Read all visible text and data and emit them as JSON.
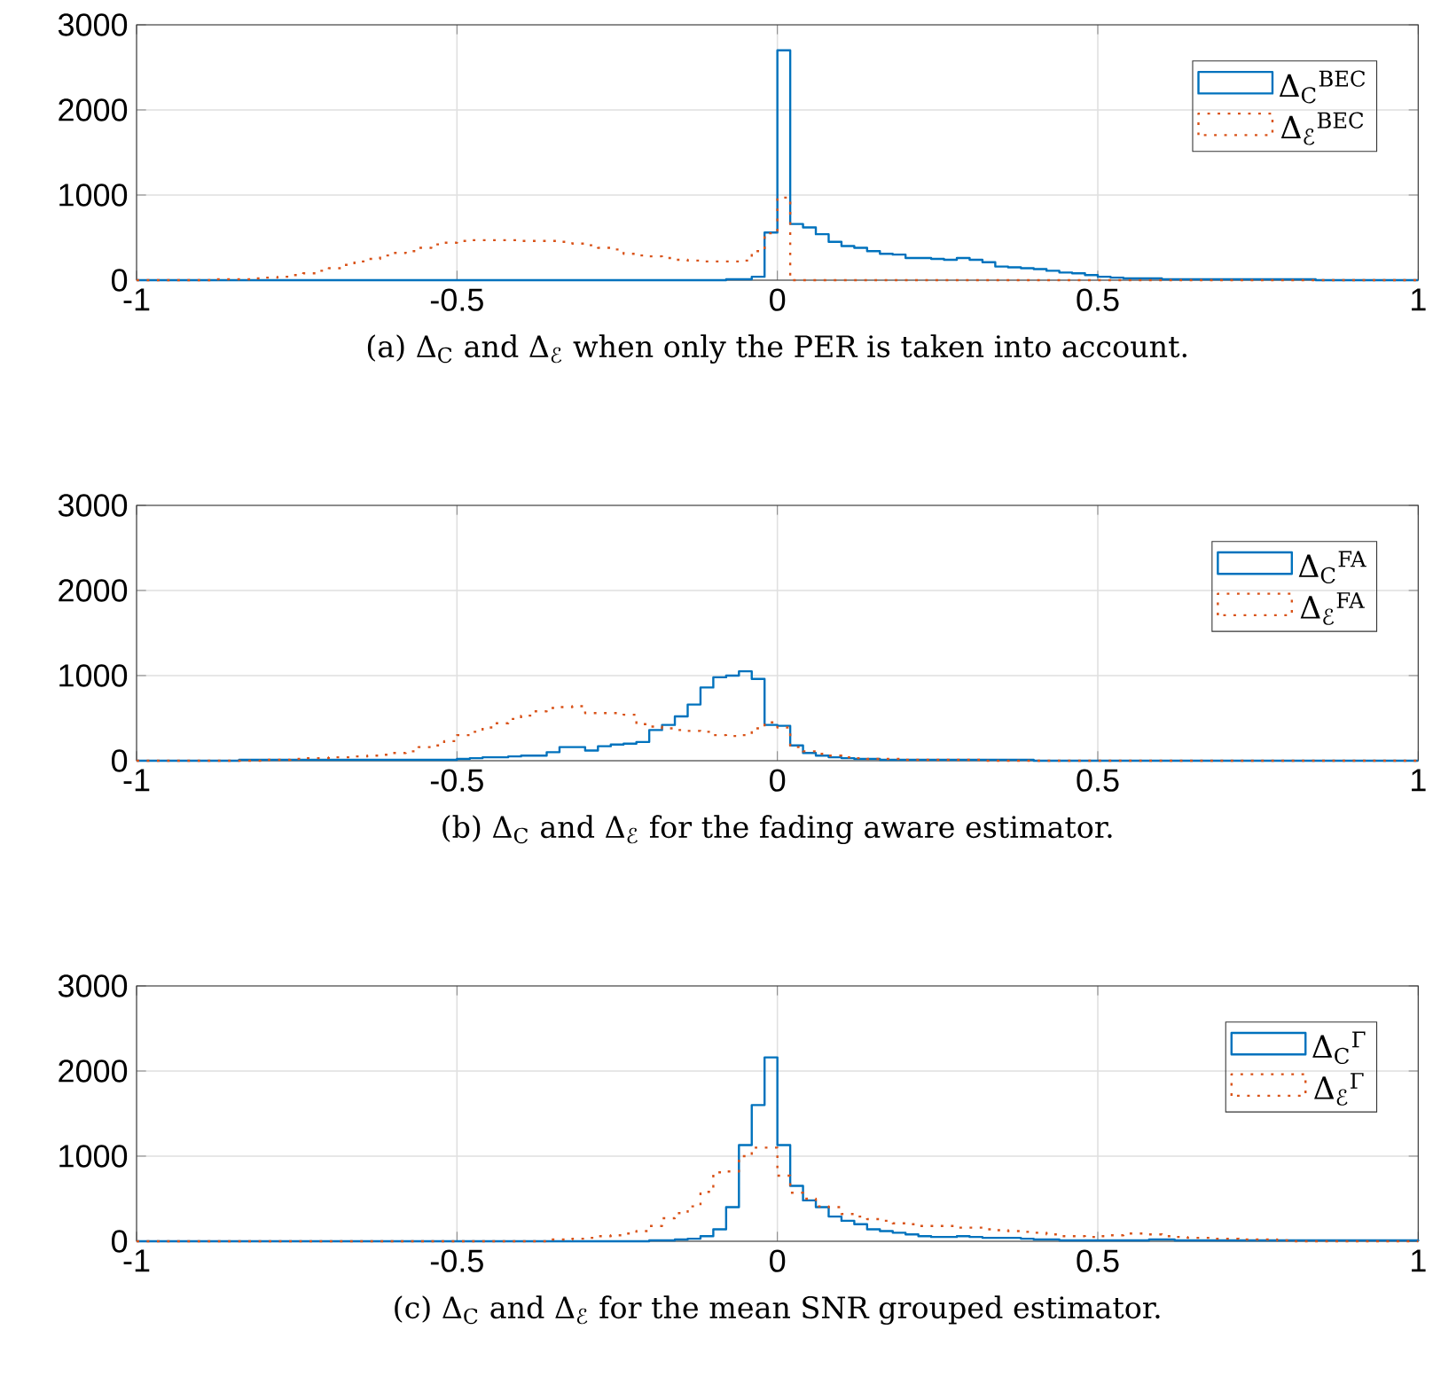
{
  "chart_data": [
    {
      "type": "histogram",
      "bins": [
        -1,
        -0.98,
        -0.96,
        -0.94,
        -0.92,
        -0.9,
        -0.88,
        -0.86,
        -0.84,
        -0.82,
        -0.8,
        -0.78,
        -0.76,
        -0.74,
        -0.72,
        -0.7,
        -0.68,
        -0.66,
        -0.64,
        -0.62,
        -0.6,
        -0.58,
        -0.56,
        -0.54,
        -0.52,
        -0.5,
        -0.48,
        -0.46,
        -0.44,
        -0.42,
        -0.4,
        -0.38,
        -0.36,
        -0.34,
        -0.32,
        -0.3,
        -0.28,
        -0.26,
        -0.24,
        -0.22,
        -0.2,
        -0.18,
        -0.16,
        -0.14,
        -0.12,
        -0.1,
        -0.08,
        -0.06,
        -0.04,
        -0.02,
        0,
        0.02,
        0.04,
        0.06,
        0.08,
        0.1,
        0.12,
        0.14,
        0.16,
        0.18,
        0.2,
        0.22,
        0.24,
        0.26,
        0.28,
        0.3,
        0.32,
        0.34,
        0.36,
        0.38,
        0.4,
        0.42,
        0.44,
        0.46,
        0.48,
        0.5,
        0.52,
        0.54,
        0.56,
        0.58,
        0.6,
        0.62,
        0.64,
        0.66,
        0.68,
        0.7,
        0.72,
        0.74,
        0.76,
        0.78,
        0.8,
        0.82,
        0.84,
        0.86,
        0.88,
        0.9,
        0.92,
        0.94,
        0.96,
        0.98,
        1
      ],
      "series": [
        {
          "name": "Δ$_{C}$$^{BEC}$",
          "color": "#0072bd",
          "line_style": "solid",
          "values": [
            0,
            0,
            0,
            0,
            0,
            0,
            0,
            0,
            0,
            0,
            0,
            0,
            0,
            0,
            0,
            0,
            0,
            0,
            0,
            0,
            0,
            0,
            0,
            0,
            0,
            0,
            0,
            0,
            0,
            0,
            0,
            0,
            0,
            0,
            0,
            0,
            0,
            0,
            0,
            0,
            0,
            0,
            0,
            0,
            0,
            0,
            10,
            10,
            40,
            560,
            2700,
            660,
            620,
            540,
            450,
            400,
            380,
            340,
            310,
            300,
            260,
            260,
            250,
            240,
            260,
            240,
            210,
            160,
            150,
            140,
            130,
            110,
            90,
            80,
            60,
            40,
            30,
            20,
            20,
            20,
            10,
            10,
            10,
            10,
            10,
            10,
            10,
            10,
            10,
            10,
            10,
            10,
            0,
            0,
            0,
            0,
            0,
            0,
            0,
            0
          ]
        },
        {
          "name": "Δ$_{ℰ}$$^{BEC}$",
          "color": "#d95319",
          "line_style": "dotted",
          "values": [
            0,
            0,
            0,
            0,
            0,
            0,
            10,
            10,
            10,
            20,
            30,
            40,
            60,
            80,
            110,
            140,
            180,
            220,
            250,
            290,
            320,
            340,
            380,
            420,
            440,
            460,
            470,
            470,
            470,
            470,
            460,
            460,
            460,
            450,
            430,
            410,
            380,
            360,
            310,
            290,
            280,
            260,
            240,
            230,
            220,
            220,
            220,
            230,
            340,
            550,
            970,
            0,
            0,
            0,
            0,
            0,
            0,
            0,
            0,
            0,
            0,
            0,
            0,
            0,
            0,
            0,
            0,
            0,
            0,
            0,
            0,
            0,
            0,
            0,
            0,
            0,
            0,
            0,
            0,
            0,
            0,
            0,
            0,
            0,
            0,
            0,
            0,
            0,
            0,
            0,
            0,
            0,
            0,
            0,
            0,
            0,
            0,
            0,
            0,
            0
          ]
        }
      ],
      "xlim": [
        -1,
        1
      ],
      "ylim": [
        0,
        3000
      ],
      "xticks": [
        -1,
        -0.5,
        0,
        0.5,
        1
      ],
      "yticks": [
        0,
        1000,
        2000,
        3000
      ],
      "grid": true,
      "legend": "top right",
      "annotations": [
        "(a) Δ$_{C}$ and Δ$_{ℰ}$ when only the PER is taken into account."
      ]
    },
    {
      "type": "histogram",
      "bins": [
        -1,
        -0.98,
        -0.96,
        -0.94,
        -0.92,
        -0.9,
        -0.88,
        -0.86,
        -0.84,
        -0.82,
        -0.8,
        -0.78,
        -0.76,
        -0.74,
        -0.72,
        -0.7,
        -0.68,
        -0.66,
        -0.64,
        -0.62,
        -0.6,
        -0.58,
        -0.56,
        -0.54,
        -0.52,
        -0.5,
        -0.48,
        -0.46,
        -0.44,
        -0.42,
        -0.4,
        -0.38,
        -0.36,
        -0.34,
        -0.32,
        -0.3,
        -0.28,
        -0.26,
        -0.24,
        -0.22,
        -0.2,
        -0.18,
        -0.16,
        -0.14,
        -0.12,
        -0.1,
        -0.08,
        -0.06,
        -0.04,
        -0.02,
        0,
        0.02,
        0.04,
        0.06,
        0.08,
        0.1,
        0.12,
        0.14,
        0.16,
        0.18,
        0.2,
        0.22,
        0.24,
        0.26,
        0.28,
        0.3,
        0.32,
        0.34,
        0.36,
        0.38,
        0.4,
        0.42,
        0.44,
        0.46,
        0.48,
        0.5,
        0.52,
        0.54,
        0.56,
        0.58,
        0.6,
        0.62,
        0.64,
        0.66,
        0.68,
        0.7,
        0.72,
        0.74,
        0.76,
        0.78,
        0.8,
        0.82,
        0.84,
        0.86,
        0.88,
        0.9,
        0.92,
        0.94,
        0.96,
        0.98,
        1
      ],
      "series": [
        {
          "name": "Δ$_{C}$$^{FA}$",
          "color": "#0072bd",
          "line_style": "solid",
          "values": [
            0,
            0,
            0,
            0,
            0,
            0,
            0,
            0,
            10,
            10,
            10,
            10,
            10,
            10,
            10,
            10,
            10,
            10,
            10,
            10,
            10,
            10,
            10,
            10,
            10,
            20,
            30,
            40,
            40,
            50,
            60,
            60,
            100,
            160,
            160,
            120,
            170,
            190,
            200,
            220,
            360,
            420,
            520,
            660,
            860,
            980,
            1000,
            1050,
            960,
            420,
            410,
            180,
            90,
            60,
            40,
            30,
            20,
            20,
            10,
            10,
            10,
            10,
            10,
            10,
            10,
            10,
            10,
            10,
            10,
            10,
            0,
            0,
            0,
            0,
            0,
            0,
            0,
            0,
            0,
            0,
            0,
            0,
            0,
            0,
            0,
            0,
            0,
            0,
            0,
            0,
            0,
            0,
            0,
            0,
            0,
            0,
            0,
            0,
            0,
            0
          ]
        },
        {
          "name": "Δ$_{ℰ}$$^{FA}$",
          "color": "#d95319",
          "line_style": "dotted",
          "values": [
            0,
            0,
            0,
            0,
            0,
            0,
            0,
            0,
            0,
            0,
            10,
            10,
            20,
            30,
            30,
            40,
            40,
            50,
            60,
            70,
            90,
            110,
            160,
            180,
            230,
            300,
            340,
            390,
            440,
            490,
            530,
            580,
            620,
            630,
            640,
            560,
            560,
            560,
            540,
            430,
            400,
            380,
            360,
            350,
            340,
            300,
            290,
            300,
            380,
            450,
            390,
            160,
            110,
            80,
            60,
            40,
            30,
            20,
            20,
            20,
            10,
            10,
            10,
            10,
            10,
            10,
            0,
            0,
            0,
            0,
            0,
            0,
            0,
            0,
            0,
            0,
            0,
            0,
            0,
            0,
            0,
            0,
            0,
            0,
            0,
            0,
            0,
            0,
            0,
            0,
            0,
            0,
            0,
            0,
            0,
            0,
            0,
            0,
            0,
            0
          ]
        }
      ],
      "xlim": [
        -1,
        1
      ],
      "ylim": [
        0,
        3000
      ],
      "xticks": [
        -1,
        -0.5,
        0,
        0.5,
        1
      ],
      "yticks": [
        0,
        1000,
        2000,
        3000
      ],
      "grid": true,
      "legend": "top right",
      "annotations": [
        "(b)  Δ$_{C}$ and Δ$_{ℰ}$ for the fading aware estimator."
      ]
    },
    {
      "type": "histogram",
      "bins": [
        -1,
        -0.98,
        -0.96,
        -0.94,
        -0.92,
        -0.9,
        -0.88,
        -0.86,
        -0.84,
        -0.82,
        -0.8,
        -0.78,
        -0.76,
        -0.74,
        -0.72,
        -0.7,
        -0.68,
        -0.66,
        -0.64,
        -0.62,
        -0.6,
        -0.58,
        -0.56,
        -0.54,
        -0.52,
        -0.5,
        -0.48,
        -0.46,
        -0.44,
        -0.42,
        -0.4,
        -0.38,
        -0.36,
        -0.34,
        -0.32,
        -0.3,
        -0.28,
        -0.26,
        -0.24,
        -0.22,
        -0.2,
        -0.18,
        -0.16,
        -0.14,
        -0.12,
        -0.1,
        -0.08,
        -0.06,
        -0.04,
        -0.02,
        0,
        0.02,
        0.04,
        0.06,
        0.08,
        0.1,
        0.12,
        0.14,
        0.16,
        0.18,
        0.2,
        0.22,
        0.24,
        0.26,
        0.28,
        0.3,
        0.32,
        0.34,
        0.36,
        0.38,
        0.4,
        0.42,
        0.44,
        0.46,
        0.48,
        0.5,
        0.52,
        0.54,
        0.56,
        0.58,
        0.6,
        0.62,
        0.64,
        0.66,
        0.68,
        0.7,
        0.72,
        0.74,
        0.76,
        0.78,
        0.8,
        0.82,
        0.84,
        0.86,
        0.88,
        0.9,
        0.92,
        0.94,
        0.96,
        0.98,
        1
      ],
      "series": [
        {
          "name": "Δ$_{C}$$^{Γ}$",
          "color": "#0072bd",
          "line_style": "solid",
          "values": [
            0,
            0,
            0,
            0,
            0,
            0,
            0,
            0,
            0,
            0,
            0,
            0,
            0,
            0,
            0,
            0,
            0,
            0,
            0,
            0,
            0,
            0,
            0,
            0,
            0,
            0,
            0,
            0,
            0,
            0,
            0,
            0,
            0,
            0,
            0,
            0,
            0,
            0,
            0,
            0,
            10,
            10,
            20,
            30,
            60,
            140,
            400,
            1130,
            1600,
            2160,
            1130,
            650,
            480,
            400,
            290,
            240,
            200,
            140,
            120,
            100,
            80,
            60,
            50,
            50,
            60,
            50,
            40,
            40,
            40,
            30,
            20,
            20,
            10,
            10,
            10,
            10,
            10,
            10,
            10,
            20,
            20,
            10,
            10,
            10,
            10,
            10,
            10,
            10,
            10,
            10,
            10,
            10,
            10,
            10,
            10,
            10,
            10,
            10,
            10,
            10
          ]
        },
        {
          "name": "Δ$_{ℰ}$$^{Γ}$",
          "color": "#d95319",
          "line_style": "dotted",
          "values": [
            0,
            0,
            0,
            0,
            0,
            0,
            0,
            0,
            0,
            0,
            0,
            0,
            0,
            0,
            0,
            0,
            0,
            0,
            0,
            0,
            0,
            0,
            0,
            0,
            0,
            0,
            0,
            0,
            0,
            0,
            0,
            0,
            20,
            20,
            30,
            40,
            60,
            70,
            90,
            120,
            180,
            270,
            330,
            410,
            580,
            810,
            820,
            1000,
            1100,
            1100,
            770,
            570,
            500,
            410,
            400,
            320,
            290,
            260,
            240,
            210,
            200,
            180,
            180,
            180,
            160,
            160,
            140,
            130,
            120,
            110,
            100,
            80,
            60,
            60,
            50,
            60,
            70,
            90,
            90,
            80,
            60,
            50,
            40,
            40,
            30,
            30,
            20,
            20,
            20,
            10,
            0,
            0,
            0,
            0,
            0,
            0,
            0,
            0,
            0,
            0
          ]
        }
      ],
      "xlim": [
        -1,
        1
      ],
      "ylim": [
        0,
        3000
      ],
      "xticks": [
        -1,
        -0.5,
        0,
        0.5,
        1
      ],
      "yticks": [
        0,
        1000,
        2000,
        3000
      ],
      "grid": true,
      "legend": "top right",
      "annotations": [
        "(c) Δ$_{C}$ and Δ$_{ℰ}$ for the mean SNR grouped estimator."
      ]
    }
  ]
}
